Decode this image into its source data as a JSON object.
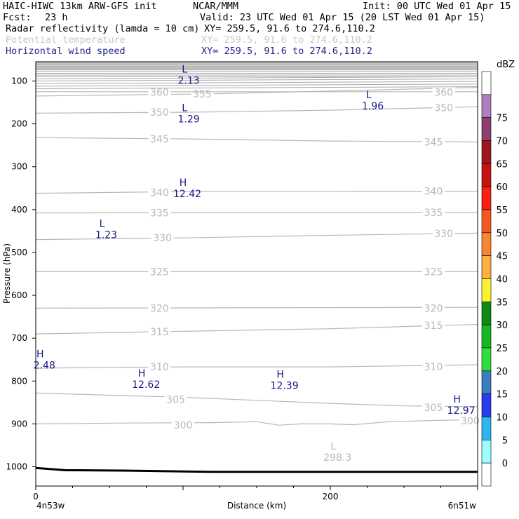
{
  "header": {
    "model": "HAIC-HIWC 13km ARW-GFS init",
    "center": "NCAR/MMM",
    "init": "Init: 00 UTC Wed 01 Apr 15",
    "fcst_label": "Fcst:",
    "fcst_value": "23 h",
    "valid": "Valid: 23 UTC Wed 01 Apr 15 (20 LST Wed 01 Apr 15)",
    "fields": [
      {
        "name": "Radar reflectivity (lamda = 10 cm)",
        "xy": "XY= 259.5, 91.6 to 274.6,110.2",
        "color": "#000000"
      },
      {
        "name": "Potential temperature",
        "xy": "XY= 259.5, 91.6 to 274.6,110.2",
        "color": "#c8c8c8"
      },
      {
        "name": "Horizontal wind speed",
        "xy": "XY= 259.5, 91.6 to 274.6,110.2",
        "color": "#1f1f8f"
      }
    ]
  },
  "chart_data": {
    "type": "cross-section",
    "ylabel": "Pressure (hPa)",
    "xlabel": "Distance (km)",
    "x_start_label": "4n53w",
    "x_end_label": "6n51w",
    "xlim": [
      0,
      300
    ],
    "ylim": [
      1045,
      55
    ],
    "x_ticks": [
      0,
      200
    ],
    "y_ticks": [
      100,
      200,
      300,
      400,
      500,
      600,
      700,
      800,
      900,
      1000
    ],
    "theta_contours": [
      {
        "value": 300,
        "points": [
          [
            0,
            900
          ],
          [
            60,
            898
          ],
          [
            120,
            897
          ],
          [
            150,
            895
          ],
          [
            165,
            903
          ],
          [
            180,
            900
          ],
          [
            200,
            900
          ],
          [
            215,
            902
          ],
          [
            240,
            895
          ],
          [
            270,
            892
          ],
          [
            300,
            890
          ]
        ],
        "labels": [
          [
            100,
            903
          ],
          [
            295,
            893
          ]
        ]
      },
      {
        "value": 305,
        "points": [
          [
            0,
            828
          ],
          [
            100,
            838
          ],
          [
            200,
            852
          ],
          [
            250,
            858
          ],
          [
            300,
            860
          ]
        ],
        "labels": [
          [
            95,
            843
          ],
          [
            270,
            862
          ]
        ]
      },
      {
        "value": 310,
        "points": [
          [
            0,
            770
          ],
          [
            100,
            767
          ],
          [
            200,
            767
          ],
          [
            300,
            762
          ]
        ],
        "labels": [
          [
            84,
            767
          ],
          [
            270,
            767
          ]
        ]
      },
      {
        "value": 315,
        "points": [
          [
            0,
            690
          ],
          [
            100,
            684
          ],
          [
            200,
            678
          ],
          [
            300,
            668
          ]
        ],
        "labels": [
          [
            84,
            685
          ],
          [
            270,
            670
          ]
        ]
      },
      {
        "value": 320,
        "points": [
          [
            0,
            630
          ],
          [
            300,
            628
          ]
        ],
        "labels": [
          [
            84,
            630
          ],
          [
            270,
            630
          ]
        ]
      },
      {
        "value": 325,
        "points": [
          [
            0,
            545
          ],
          [
            300,
            545
          ]
        ],
        "labels": [
          [
            84,
            545
          ],
          [
            270,
            545
          ]
        ]
      },
      {
        "value": 330,
        "points": [
          [
            0,
            470
          ],
          [
            100,
            466
          ],
          [
            200,
            460
          ],
          [
            300,
            455
          ]
        ],
        "labels": [
          [
            86,
            466
          ],
          [
            277,
            456
          ]
        ]
      },
      {
        "value": 335,
        "points": [
          [
            0,
            408
          ],
          [
            100,
            407
          ],
          [
            200,
            407
          ],
          [
            300,
            407
          ]
        ],
        "labels": [
          [
            84,
            408
          ],
          [
            270,
            407
          ]
        ]
      },
      {
        "value": 340,
        "points": [
          [
            0,
            362
          ],
          [
            100,
            358
          ],
          [
            200,
            358
          ],
          [
            300,
            357
          ]
        ],
        "labels": [
          [
            84,
            360
          ],
          [
            270,
            357
          ]
        ]
      },
      {
        "value": 345,
        "points": [
          [
            0,
            232
          ],
          [
            100,
            235
          ],
          [
            200,
            240
          ],
          [
            300,
            242
          ]
        ],
        "labels": [
          [
            84,
            235
          ],
          [
            270,
            242
          ]
        ]
      },
      {
        "value": 350,
        "points": [
          [
            0,
            175
          ],
          [
            100,
            173
          ],
          [
            200,
            168
          ],
          [
            300,
            160
          ]
        ],
        "labels": [
          [
            84,
            173
          ],
          [
            277,
            162
          ]
        ]
      },
      {
        "value": 355,
        "points": [
          [
            0,
            135
          ],
          [
            120,
            130
          ],
          [
            300,
            115
          ]
        ],
        "labels": [
          [
            113,
            130
          ]
        ]
      },
      {
        "value": 360,
        "points": [
          [
            0,
            125
          ],
          [
            100,
            125
          ],
          [
            200,
            125
          ],
          [
            300,
            125
          ]
        ],
        "labels": [
          [
            84,
            126
          ],
          [
            277,
            126
          ]
        ]
      }
    ],
    "extrema": [
      {
        "type": "L",
        "value": "2.13",
        "x": 101,
        "p": 80,
        "color": "blue"
      },
      {
        "type": "L",
        "value": "1.96",
        "x": 226,
        "p": 140,
        "color": "blue"
      },
      {
        "type": "L",
        "value": "1.29",
        "x": 101,
        "p": 170,
        "color": "blue"
      },
      {
        "type": "H",
        "value": "12.42",
        "x": 100,
        "p": 345,
        "color": "blue"
      },
      {
        "type": "L",
        "value": "1.23",
        "x": 45,
        "p": 440,
        "color": "blue"
      },
      {
        "type": "H",
        "value": "2.48",
        "x": 3,
        "p": 745,
        "color": "blue"
      },
      {
        "type": "H",
        "value": "12.62",
        "x": 72,
        "p": 790,
        "color": "blue"
      },
      {
        "type": "H",
        "value": "12.39",
        "x": 166,
        "p": 792,
        "color": "blue"
      },
      {
        "type": "H",
        "value": "12.97",
        "x": 286,
        "p": 850,
        "color": "blue"
      },
      {
        "type": "L",
        "value": "298.3",
        "x": 202,
        "p": 960,
        "color": "gray"
      }
    ],
    "terrain": [
      [
        0,
        1003
      ],
      [
        20,
        1008
      ],
      [
        60,
        1009
      ],
      [
        120,
        1012
      ],
      [
        200,
        1012
      ],
      [
        300,
        1012
      ]
    ],
    "colorbar": {
      "unit": "dBZ",
      "levels": [
        0,
        5,
        10,
        15,
        20,
        25,
        30,
        35,
        40,
        45,
        50,
        55,
        60,
        65,
        70,
        75
      ],
      "colors": [
        "#ffffff",
        "#9bffff",
        "#2cb7f0",
        "#2a3ced",
        "#3a7dc0",
        "#2ee03a",
        "#16b821",
        "#0e8a14",
        "#fdf230",
        "#fbb040",
        "#f7862f",
        "#f45821",
        "#f81f14",
        "#c31412",
        "#a01520",
        "#8e3f6e",
        "#b27cc0",
        "#ffffff"
      ]
    }
  }
}
